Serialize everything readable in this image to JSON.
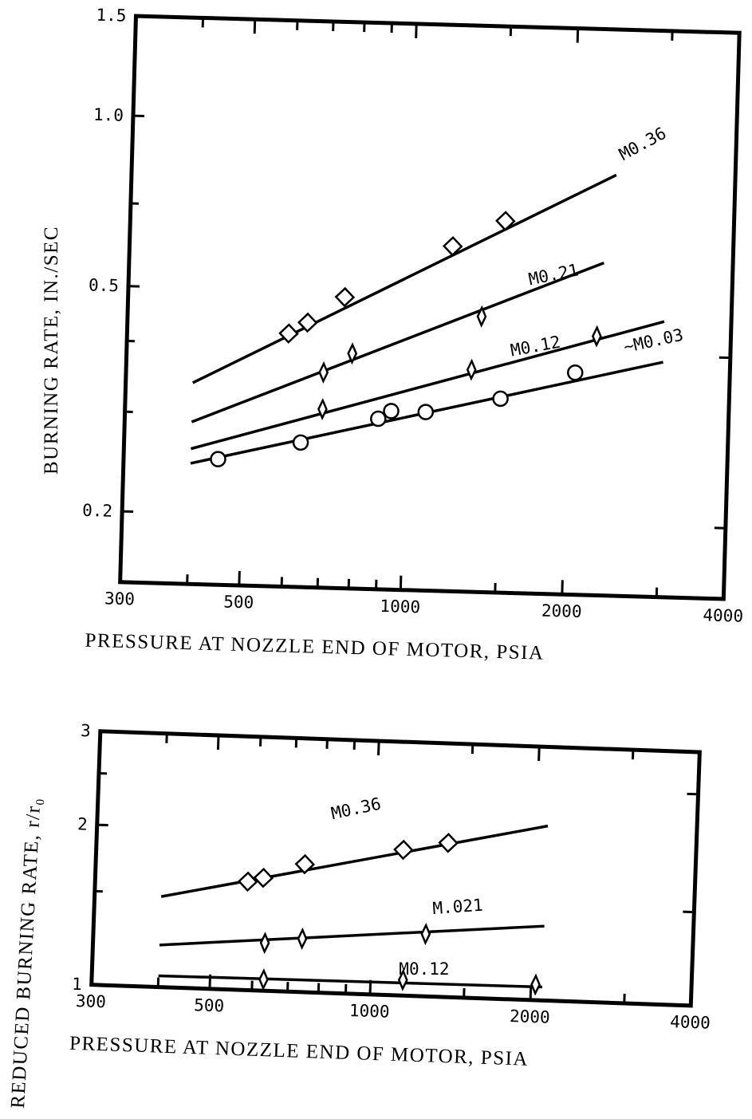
{
  "chart_data": [
    {
      "type": "line",
      "xscale": "log",
      "yscale": "log",
      "xlim": [
        300,
        4000
      ],
      "ylim": [
        0.15,
        1.5
      ],
      "x_ticks": [
        "300",
        "500",
        "1000",
        "2000",
        "4000"
      ],
      "y_ticks": [
        "1.5",
        "1.0",
        "0.5",
        "0.2"
      ],
      "xlabel": "PRESSURE AT NOZZLE END OF MOTOR, PSIA",
      "ylabel": "BURNING RATE, IN./SEC",
      "series": [
        {
          "name": "M0.36",
          "marker": "diamond",
          "line": [
            [
              400,
              0.34
            ],
            [
              2400,
              0.83
            ]
          ],
          "points": [
            [
              600,
              0.42
            ],
            [
              650,
              0.44
            ],
            [
              760,
              0.49
            ],
            [
              1200,
              0.61
            ],
            [
              1500,
              0.68
            ]
          ]
        },
        {
          "name": "M0.21",
          "marker": "thin-diamond",
          "line": [
            [
              400,
              0.29
            ],
            [
              2300,
              0.58
            ]
          ],
          "points": [
            [
              700,
              0.36
            ],
            [
              790,
              0.39
            ],
            [
              1370,
              0.46
            ]
          ]
        },
        {
          "name": "M0.12",
          "marker": "thin-diamond",
          "line": [
            [
              400,
              0.26
            ],
            [
              3000,
              0.46
            ]
          ],
          "points": [
            [
              700,
              0.31
            ],
            [
              1320,
              0.37
            ],
            [
              2250,
              0.43
            ]
          ]
        },
        {
          "name": "~M0.03",
          "marker": "circle",
          "line": [
            [
              400,
              0.245
            ],
            [
              3000,
              0.39
            ]
          ],
          "points": [
            [
              450,
              0.25
            ],
            [
              640,
              0.27
            ],
            [
              890,
              0.3
            ],
            [
              940,
              0.31
            ],
            [
              1090,
              0.31
            ],
            [
              1500,
              0.33
            ],
            [
              2060,
              0.37
            ]
          ]
        }
      ]
    },
    {
      "type": "line",
      "xscale": "log",
      "yscale": "log",
      "xlim": [
        300,
        4000
      ],
      "ylim": [
        1,
        3
      ],
      "x_ticks": [
        "300",
        "500",
        "1000",
        "2000",
        "4000"
      ],
      "y_ticks": [
        "3",
        "2",
        "1"
      ],
      "xlabel": "PRESSURE AT NOZZLE END OF MOTOR, PSIA",
      "ylabel": "REDUCED BURNING RATE, r/r₀",
      "series": [
        {
          "name": "M0.36",
          "marker": "diamond",
          "line": [
            [
              400,
              1.48
            ],
            [
              2100,
              2.13
            ]
          ],
          "points": [
            [
              580,
              1.6
            ],
            [
              620,
              1.63
            ],
            [
              740,
              1.74
            ],
            [
              1130,
              1.88
            ],
            [
              1370,
              1.95
            ]
          ]
        },
        {
          "name": "M.021",
          "marker": "thin-diamond",
          "line": [
            [
              400,
              1.2
            ],
            [
              2100,
              1.38
            ]
          ],
          "points": [
            [
              630,
              1.23
            ],
            [
              740,
              1.26
            ],
            [
              1260,
              1.31
            ]
          ]
        },
        {
          "name": "M0.12",
          "marker": "thin-diamond",
          "line": [
            [
              400,
              1.05
            ],
            [
              2100,
              1.06
            ]
          ],
          "points": [
            [
              630,
              1.05
            ],
            [
              1150,
              1.07
            ],
            [
              2040,
              1.07
            ]
          ]
        }
      ]
    }
  ]
}
